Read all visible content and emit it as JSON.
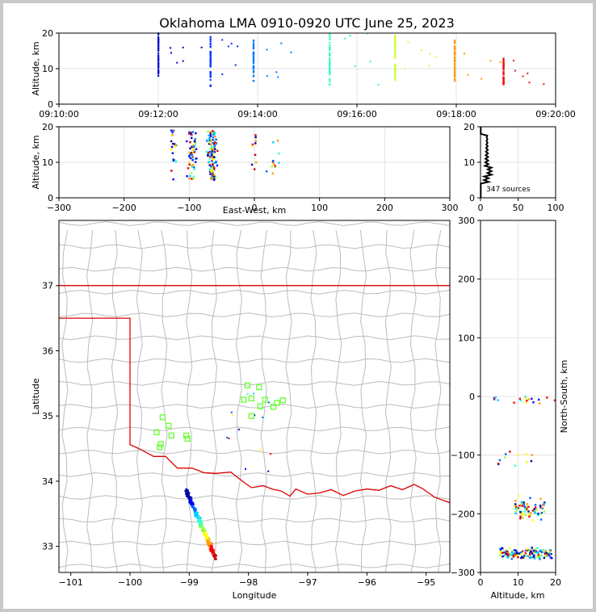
{
  "title": "Oklahoma LMA 0910-0920 UTC June 25, 2023",
  "sources_label": "347 sources",
  "colors": {
    "state_border": "#e00000",
    "county_line": "#bcbcbc",
    "station": "#66ff33"
  },
  "chart_data": [
    {
      "type": "scatter",
      "name": "time-height",
      "ylabel": "Altitude, km",
      "xlim": [
        "09:10:00",
        "09:20:00"
      ],
      "ylim": [
        0,
        20
      ],
      "x_ticks": [
        "09:10:00",
        "09:12:00",
        "09:14:00",
        "09:16:00",
        "09:18:00",
        "09:20:00"
      ],
      "y_ticks": [
        "0",
        "10",
        "20"
      ],
      "grid": true,
      "clusters": [
        {
          "time": "09:12:00",
          "alt_range": [
            6.5,
            20
          ],
          "color": "#0000cc"
        },
        {
          "time": "09:13:03",
          "alt_range": [
            5,
            19
          ],
          "color": "#0033ff"
        },
        {
          "time": "09:13:55",
          "alt_range": [
            6.5,
            18
          ],
          "color": "#0080ff"
        },
        {
          "time": "09:15:27",
          "alt_range": [
            5,
            20
          ],
          "color": "#33ffcc"
        },
        {
          "time": "09:16:46",
          "alt_range": [
            6.5,
            20
          ],
          "color": "#ccff33"
        },
        {
          "time": "09:17:58",
          "alt_range": [
            6.5,
            18
          ],
          "color": "#ff9900"
        },
        {
          "time": "09:18:57",
          "alt_range": [
            5.5,
            13
          ],
          "color": "#ee1111"
        }
      ]
    },
    {
      "type": "scatter",
      "name": "east-west-altitude",
      "xlabel": "East-West, km",
      "ylabel": "Altitude, km",
      "xlim": [
        -300,
        300
      ],
      "ylim": [
        0,
        20
      ],
      "x_ticks": [
        "−300",
        "−200",
        "−100",
        "0",
        "100",
        "200",
        "300"
      ],
      "y_ticks": [
        "0",
        "10",
        "20"
      ],
      "grid": true
    },
    {
      "type": "line",
      "name": "altitude-histogram",
      "xlim": [
        0,
        100
      ],
      "ylim": [
        0,
        20
      ],
      "x_ticks": [
        "0",
        "50",
        "100"
      ],
      "y_ticks": [
        "0",
        "10",
        "20"
      ],
      "annotation": "347 sources"
    },
    {
      "type": "scatter",
      "name": "plan-view-map",
      "xlabel": "Longitude",
      "ylabel": "Latitude",
      "xlim": [
        -101.2,
        -94.6
      ],
      "ylim": [
        32.6,
        38
      ],
      "x_ticks": [
        "−101",
        "−100",
        "−99",
        "−98",
        "−97",
        "−96",
        "−95"
      ],
      "y_ticks": [
        "33",
        "34",
        "35",
        "36",
        "37"
      ],
      "stations": [
        {
          "lon": -99.45,
          "lat": 34.98
        },
        {
          "lon": -99.35,
          "lat": 34.85
        },
        {
          "lon": -99.55,
          "lat": 34.75
        },
        {
          "lon": -99.3,
          "lat": 34.7
        },
        {
          "lon": -99.48,
          "lat": 34.57
        },
        {
          "lon": -99.5,
          "lat": 34.52
        },
        {
          "lon": -99.05,
          "lat": 34.7
        },
        {
          "lon": -99.03,
          "lat": 34.65
        },
        {
          "lon": -98.02,
          "lat": 35.47
        },
        {
          "lon": -97.82,
          "lat": 35.44
        },
        {
          "lon": -98.08,
          "lat": 35.25
        },
        {
          "lon": -97.95,
          "lat": 35.27
        },
        {
          "lon": -97.72,
          "lat": 35.25
        },
        {
          "lon": -97.8,
          "lat": 35.15
        },
        {
          "lon": -97.58,
          "lat": 35.14
        },
        {
          "lon": -97.52,
          "lat": 35.2
        },
        {
          "lon": -97.42,
          "lat": 35.24
        },
        {
          "lon": -97.95,
          "lat": 35.0
        }
      ]
    },
    {
      "type": "scatter",
      "name": "altitude-north-south",
      "xlabel": "Altitude, km",
      "ylabel": "North-South, km",
      "xlim": [
        0,
        20
      ],
      "ylim": [
        -300,
        300
      ],
      "x_ticks": [
        "0",
        "10",
        "20"
      ],
      "y_ticks": [
        "−300",
        "−200",
        "−100",
        "0",
        "100",
        "200",
        "300"
      ]
    }
  ]
}
